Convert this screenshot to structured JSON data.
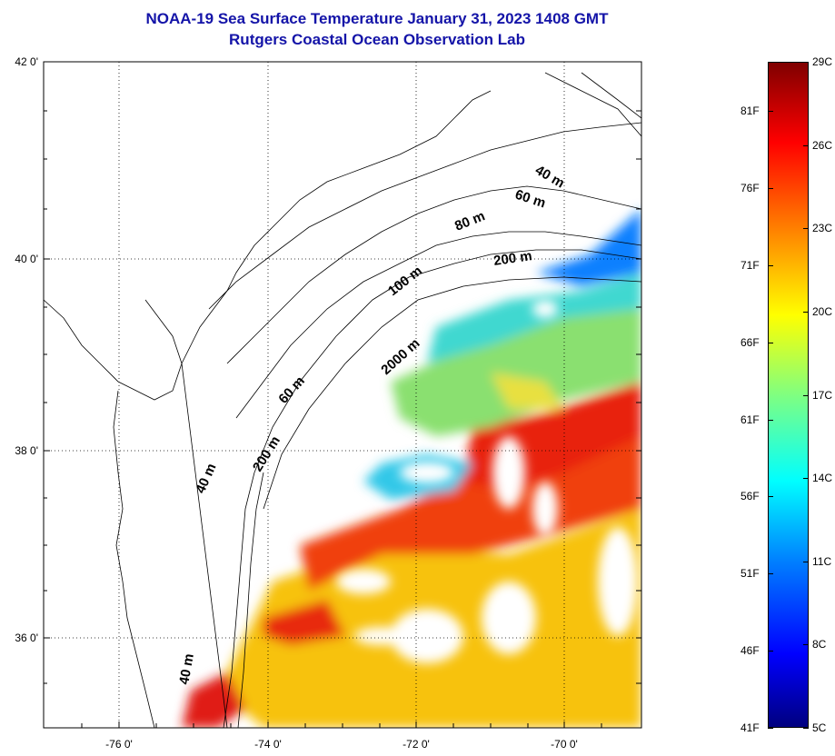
{
  "title": {
    "line1": "NOAA-19 Sea Surface Temperature January 31, 2023 1408 GMT",
    "line2": "Rutgers Coastal Ocean Observation Lab"
  },
  "map": {
    "lat_labels": [
      "42 0'",
      "40 0'",
      "38 0'",
      "36 0'"
    ],
    "lon_labels": [
      "-76 0'",
      "-74 0'",
      "-72 0'",
      "-70 0'"
    ],
    "depth_labels": [
      "40 m",
      "60 m",
      "80 m",
      "200 m",
      "100 m",
      "2000 m",
      "60 m",
      "200 m",
      "40 m",
      "40 m"
    ]
  },
  "colorbar": {
    "celsius_labels": [
      "29C",
      "26C",
      "23C",
      "20C",
      "17C",
      "14C",
      "11C",
      "8C",
      "5C"
    ],
    "fahrenheit_labels": [
      "81F",
      "76F",
      "71F",
      "66F",
      "61F",
      "56F",
      "51F",
      "46F",
      "41F"
    ],
    "colors": [
      "#00007f",
      "#0000ff",
      "#0080ff",
      "#00ffff",
      "#80ff80",
      "#ffff00",
      "#ff8000",
      "#ff0000",
      "#7f0000"
    ]
  }
}
